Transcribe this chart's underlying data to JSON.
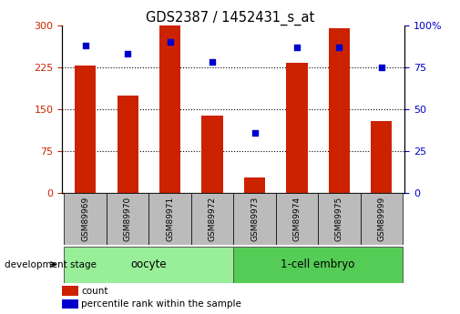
{
  "title": "GDS2387 / 1452431_s_at",
  "samples": [
    "GSM89969",
    "GSM89970",
    "GSM89971",
    "GSM89972",
    "GSM89973",
    "GSM89974",
    "GSM89975",
    "GSM89999"
  ],
  "counts": [
    228,
    175,
    300,
    138,
    28,
    232,
    295,
    128
  ],
  "percentiles": [
    88,
    83,
    90,
    78,
    36,
    87,
    87,
    75
  ],
  "bar_color": "#cc2200",
  "dot_color": "#0000cc",
  "left_ylim": [
    0,
    300
  ],
  "right_ylim": [
    0,
    100
  ],
  "left_yticks": [
    0,
    75,
    150,
    225,
    300
  ],
  "right_yticks": [
    0,
    25,
    50,
    75,
    100
  ],
  "groups": [
    {
      "label": "oocyte",
      "start": 0,
      "end": 3,
      "color": "#99ee99"
    },
    {
      "label": "1-cell embryo",
      "start": 4,
      "end": 7,
      "color": "#55cc55"
    }
  ],
  "tick_label_bg": "#bbbbbb",
  "bar_width": 0.5,
  "left_axis_color": "#cc2200",
  "right_axis_color": "#0000cc",
  "dev_stage_label": "development stage",
  "legend_items": [
    {
      "label": "count",
      "color": "#cc2200"
    },
    {
      "label": "percentile rank within the sample",
      "color": "#0000cc"
    }
  ]
}
